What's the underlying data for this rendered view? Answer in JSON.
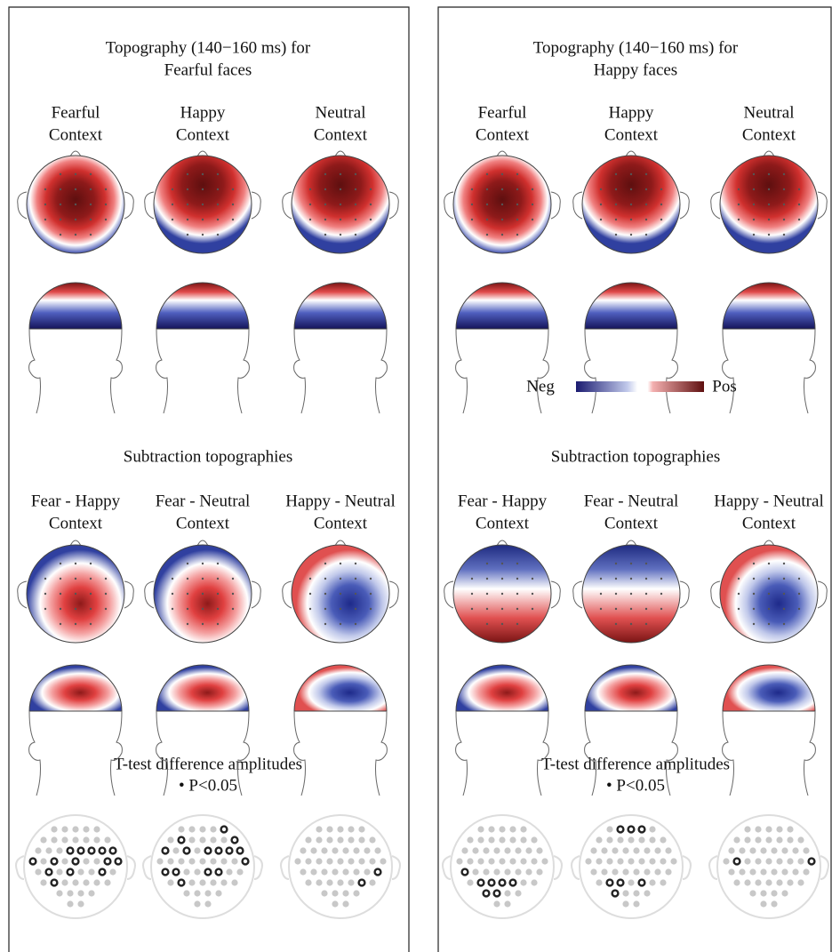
{
  "panels": [
    {
      "title": [
        "Topography (140−160 ms) for",
        "Fearful faces"
      ],
      "contexts": [
        [
          "Fearful",
          "Context"
        ],
        [
          "Happy",
          "Context"
        ],
        [
          "Neutral",
          "Context"
        ]
      ],
      "subtraction_title": "Subtraction topographies",
      "subtractions": [
        [
          "Fear - Happy",
          "Context"
        ],
        [
          "Fear - Neutral",
          "Context"
        ],
        [
          "Happy - Neutral",
          "Context"
        ]
      ],
      "ttest_title": "T-test difference amplitudes",
      "ttest_note": "• P<0.05"
    },
    {
      "title": [
        "Topography (140−160 ms) for",
        "Happy faces"
      ],
      "contexts": [
        [
          "Fearful",
          "Context"
        ],
        [
          "Happy",
          "Context"
        ],
        [
          "Neutral",
          "Context"
        ]
      ],
      "subtraction_title": "Subtraction topographies",
      "subtractions": [
        [
          "Fear - Happy",
          "Context"
        ],
        [
          "Fear - Neutral",
          "Context"
        ],
        [
          "Happy - Neutral",
          "Context"
        ]
      ],
      "ttest_title": "T-test difference amplitudes",
      "ttest_note": "• P<0.05"
    }
  ],
  "colorbar": {
    "neg": "Neg",
    "pos": "Pos"
  }
}
